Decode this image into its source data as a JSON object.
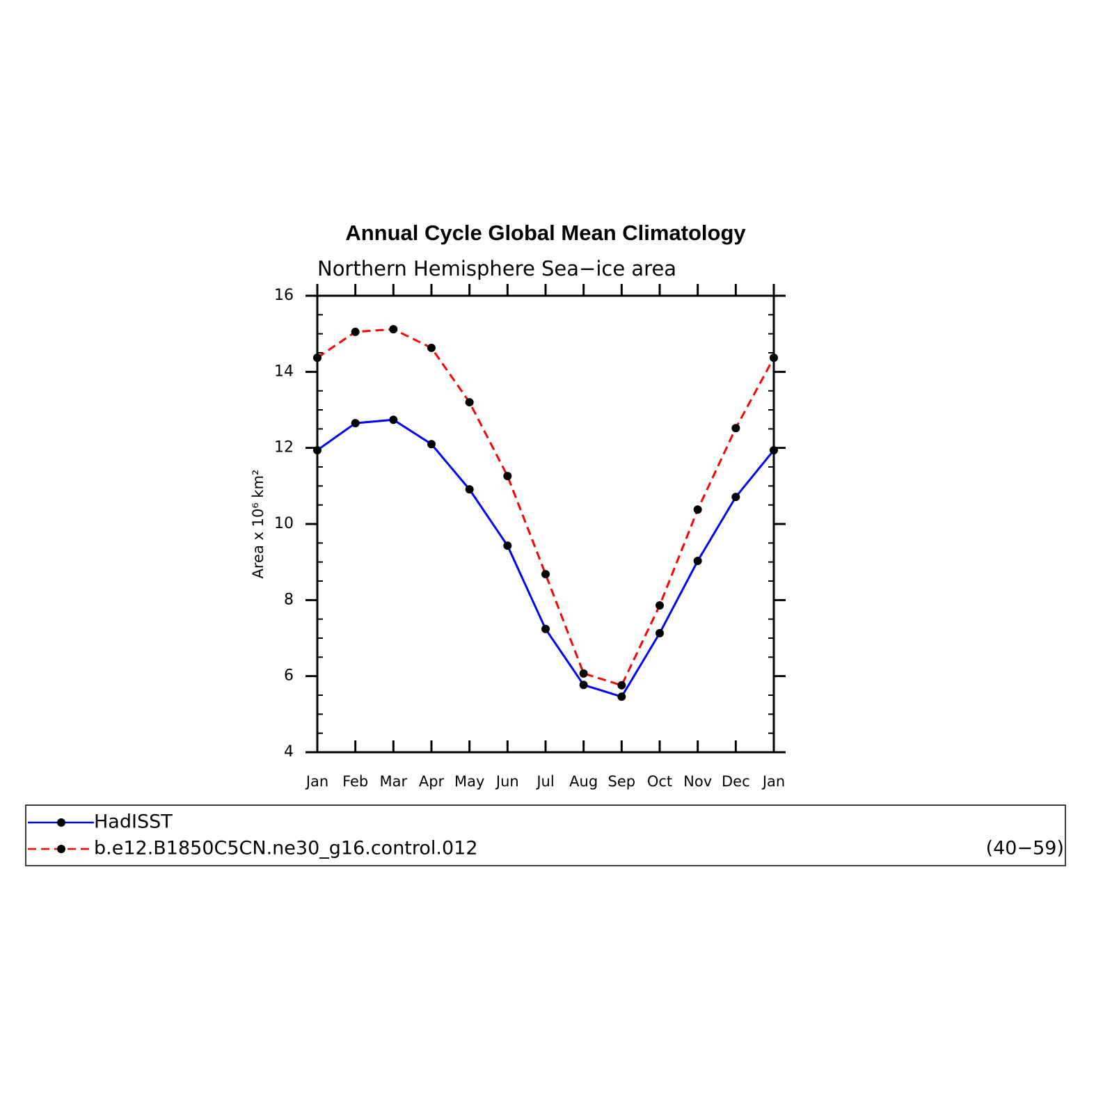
{
  "chart_data": {
    "type": "line",
    "title": "Annual Cycle Global Mean Climatology",
    "subtitle": "Northern Hemisphere Sea−ice area",
    "y_label": "Area x 10⁶ km²",
    "categories": [
      "Jan",
      "Feb",
      "Mar",
      "Apr",
      "May",
      "Jun",
      "Jul",
      "Aug",
      "Sep",
      "Oct",
      "Nov",
      "Dec",
      "Jan"
    ],
    "series": [
      {
        "name": "HadISST",
        "color": "#0000ff",
        "dash": false,
        "values": [
          11.94,
          12.65,
          12.74,
          12.1,
          10.91,
          9.43,
          7.24,
          5.77,
          5.46,
          7.13,
          9.03,
          10.71,
          11.94
        ]
      },
      {
        "name": "b.e12.B1850C5CN.ne30_g16.control.012",
        "color": "#ff0000",
        "dash": true,
        "values": [
          14.37,
          15.05,
          15.12,
          14.63,
          13.2,
          11.26,
          8.68,
          6.07,
          5.76,
          7.86,
          10.38,
          12.52,
          14.37
        ]
      }
    ],
    "legend_note": "(40−59)",
    "marker_color": "#000000",
    "ylim": [
      4,
      16
    ],
    "yticks": [
      4,
      6,
      8,
      10,
      12,
      14,
      16
    ],
    "yminorticks": [
      4.5,
      5,
      5.5,
      6.5,
      7,
      7.5,
      8.5,
      9,
      9.5,
      10.5,
      11,
      11.5,
      12.5,
      13,
      13.5,
      14.5,
      15,
      15.5
    ],
    "grid": false
  }
}
